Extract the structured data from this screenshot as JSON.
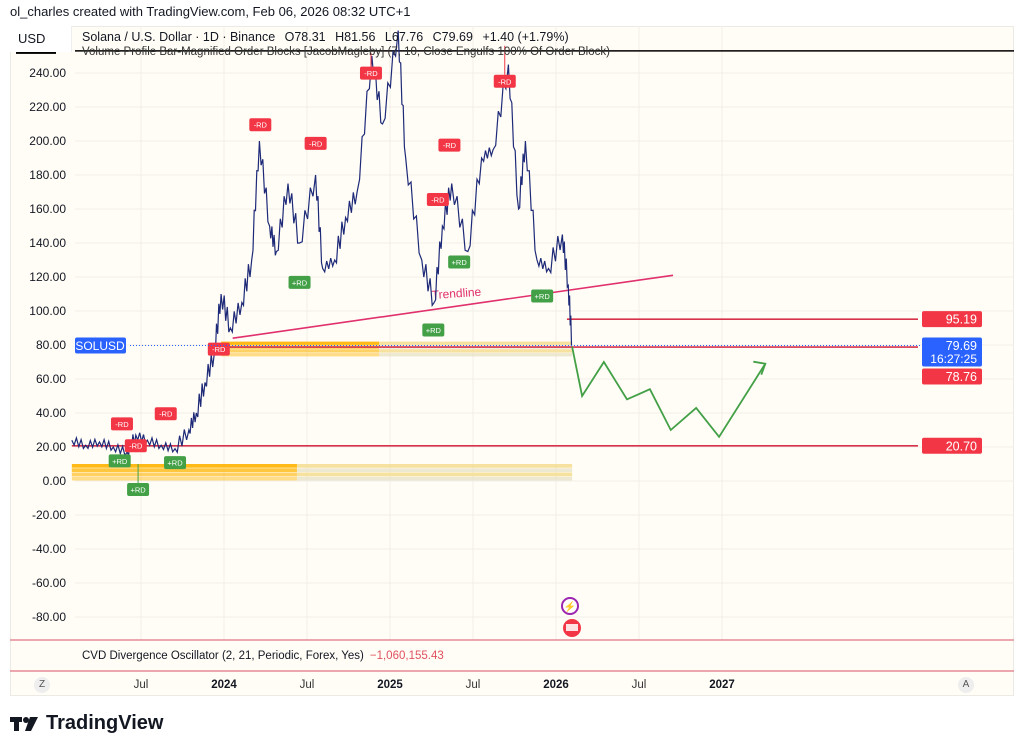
{
  "credit": "ol_charles created with TradingView.com, Feb 06, 2026 08:32 UTC+1",
  "currency": "USD",
  "legend": {
    "symbol": "Solana / U.S. Dollar · 1D · Binance",
    "open": "O78.31",
    "high": "H81.56",
    "low": "L67.76",
    "close": "C79.69",
    "change": "+1.40 (+1.79%)",
    "indicator": "Volume Profile Bar-Magnified Order Blocks [JacobMagleby] (7, 10, Close Engulfs 100% Of Order Block)"
  },
  "cvd": {
    "label": "CVD Divergence Oscillator (2, 21, Periodic, Forex, Yes)",
    "value": "−1,060,155.43"
  },
  "time_axis": {
    "left_button": "Z",
    "right_button": "A"
  },
  "brand": "TradingView",
  "colors": {
    "price": "#1e2a78",
    "tag_red": "#f23645",
    "tag_blue": "#2962ff",
    "bull": "#43a047",
    "bear": "#f23645",
    "trendline": "#e0306e",
    "order_block": "#ffb300",
    "level_line": "#d6334b"
  },
  "chart_data": {
    "type": "line",
    "title": "Solana / U.S. Dollar · 1D · Binance",
    "ylim": [
      -90,
      255
    ],
    "y_ticks": [
      -80,
      -60,
      -40,
      -20,
      0,
      20,
      40,
      60,
      80,
      100,
      120,
      140,
      160,
      180,
      200,
      220,
      240
    ],
    "x_ticks": [
      {
        "date": "2023-07-01",
        "label": "Jul",
        "year": false
      },
      {
        "date": "2024-01-01",
        "label": "2024",
        "year": true
      },
      {
        "date": "2024-07-01",
        "label": "Jul",
        "year": false
      },
      {
        "date": "2025-01-01",
        "label": "2025",
        "year": true
      },
      {
        "date": "2025-07-01",
        "label": "Jul",
        "year": false
      },
      {
        "date": "2026-01-01",
        "label": "2026",
        "year": true
      },
      {
        "date": "2026-07-01",
        "label": "Jul",
        "year": false
      },
      {
        "date": "2027-01-01",
        "label": "2027",
        "year": true
      }
    ],
    "grid": true,
    "price": [
      [
        "2023-02-01",
        24
      ],
      [
        "2023-03-01",
        21
      ],
      [
        "2023-04-01",
        23
      ],
      [
        "2023-05-01",
        20
      ],
      [
        "2023-06-01",
        17
      ],
      [
        "2023-06-20",
        27
      ],
      [
        "2023-07-15",
        24
      ],
      [
        "2023-08-15",
        21
      ],
      [
        "2023-09-15",
        19
      ],
      [
        "2023-10-15",
        30
      ],
      [
        "2023-11-01",
        40
      ],
      [
        "2023-11-20",
        58
      ],
      [
        "2023-12-10",
        75
      ],
      [
        "2023-12-25",
        110
      ],
      [
        "2024-01-15",
        90
      ],
      [
        "2024-02-10",
        105
      ],
      [
        "2024-03-01",
        130
      ],
      [
        "2024-03-18",
        200
      ],
      [
        "2024-04-10",
        150
      ],
      [
        "2024-04-25",
        135
      ],
      [
        "2024-05-20",
        175
      ],
      [
        "2024-06-15",
        140
      ],
      [
        "2024-07-20",
        180
      ],
      [
        "2024-08-05",
        125
      ],
      [
        "2024-09-01",
        130
      ],
      [
        "2024-09-25",
        155
      ],
      [
        "2024-10-20",
        170
      ],
      [
        "2024-11-22",
        250
      ],
      [
        "2024-12-15",
        210
      ],
      [
        "2025-01-19",
        265
      ],
      [
        "2025-02-05",
        190
      ],
      [
        "2025-03-10",
        130
      ],
      [
        "2025-04-07",
        105
      ],
      [
        "2025-04-25",
        150
      ],
      [
        "2025-05-15",
        175
      ],
      [
        "2025-06-20",
        135
      ],
      [
        "2025-07-20",
        190
      ],
      [
        "2025-08-15",
        195
      ],
      [
        "2025-09-18",
        245
      ],
      [
        "2025-10-10",
        160
      ],
      [
        "2025-10-25",
        200
      ],
      [
        "2025-11-20",
        130
      ],
      [
        "2025-12-15",
        125
      ],
      [
        "2026-01-15",
        145
      ],
      [
        "2026-01-28",
        115
      ],
      [
        "2026-02-06",
        79.69
      ]
    ],
    "last_price": 79.69,
    "last_price_label": "SOLUSD",
    "countdown": "16:27:25",
    "levels": [
      {
        "value": 95.19,
        "label": "95.19",
        "from": "2026-01-25"
      },
      {
        "value": 78.76,
        "label": "78.76",
        "from": "2023-12-25"
      },
      {
        "value": 20.7,
        "label": "20.70",
        "from": "2023-02-01"
      }
    ],
    "top_line": {
      "value": 253
    },
    "trendline": {
      "label": "Trendline",
      "from": [
        "2024-01-20",
        84
      ],
      "to": [
        "2026-09-15",
        121
      ]
    },
    "projection": [
      [
        "2026-02-06",
        79
      ],
      [
        "2026-02-28",
        50
      ],
      [
        "2026-04-15",
        70
      ],
      [
        "2026-06-05",
        48
      ],
      [
        "2026-07-25",
        54
      ],
      [
        "2026-09-10",
        30
      ],
      [
        "2026-11-05",
        43
      ],
      [
        "2026-12-25",
        26
      ],
      [
        "2027-04-05",
        69
      ]
    ],
    "order_blocks": [
      {
        "from": "2023-12-25",
        "to": "2026-02-06",
        "low": 73,
        "high": 82
      },
      {
        "from": "2023-02-01",
        "to": "2026-02-06",
        "low": 0,
        "high": 10
      }
    ],
    "markers": [
      {
        "type": "-RD",
        "date": "2023-05-20",
        "price": 28
      },
      {
        "type": "-RD",
        "date": "2023-06-20",
        "price": 24
      },
      {
        "type": "-RD",
        "date": "2023-08-25",
        "price": 34
      },
      {
        "type": "-RD",
        "date": "2023-12-20",
        "price": 72
      },
      {
        "type": "-RD",
        "date": "2024-03-20",
        "price": 204
      },
      {
        "type": "-RD",
        "date": "2024-07-20",
        "price": 193
      },
      {
        "type": "-RD",
        "date": "2024-11-20",
        "price": 252
      },
      {
        "type": "-RD",
        "date": "2025-04-15",
        "price": 160
      },
      {
        "type": "-RD",
        "date": "2025-05-10",
        "price": 192
      },
      {
        "type": "-RD",
        "date": "2025-09-10",
        "price": 256
      },
      {
        "type": "+RD",
        "date": "2023-05-15",
        "price": 18
      },
      {
        "type": "+RD",
        "date": "2023-06-25",
        "price": 10
      },
      {
        "type": "+RD",
        "date": "2023-09-15",
        "price": 17
      },
      {
        "type": "+RD",
        "date": "2024-06-15",
        "price": 123
      },
      {
        "type": "+RD",
        "date": "2025-04-05",
        "price": 95
      },
      {
        "type": "+RD",
        "date": "2025-06-01",
        "price": 135
      },
      {
        "type": "+RD",
        "date": "2025-12-01",
        "price": 115
      }
    ]
  }
}
